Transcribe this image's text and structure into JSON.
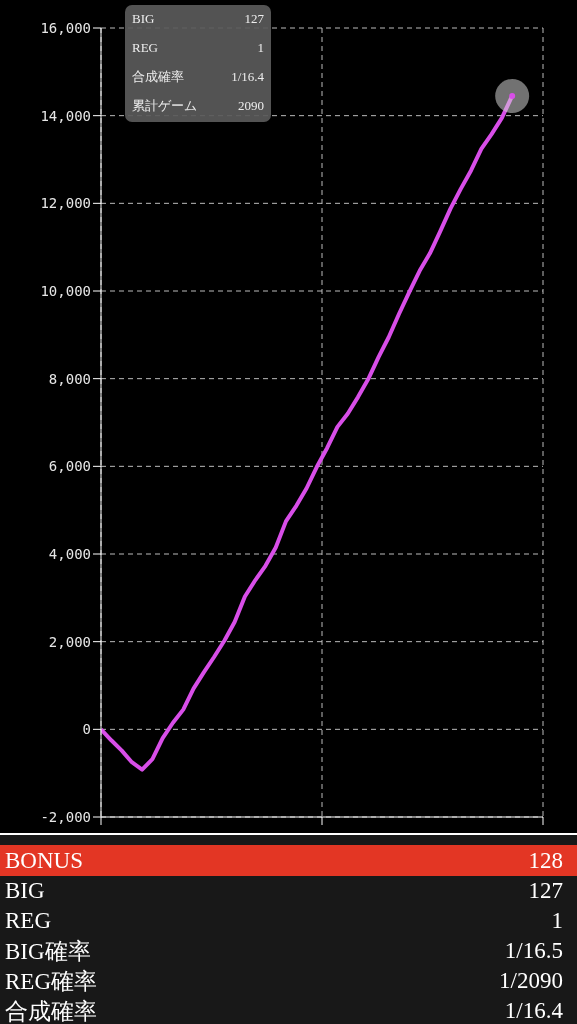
{
  "chart_data": {
    "type": "line",
    "categories": [
      null,
      null,
      null,
      null,
      null,
      null,
      null,
      null,
      null,
      null,
      null,
      null,
      null,
      null,
      null,
      null,
      null,
      null,
      null,
      null,
      null,
      null,
      null,
      null,
      null,
      null,
      null,
      null,
      null,
      null,
      null,
      null,
      null,
      null,
      null,
      null,
      null,
      null,
      null,
      null,
      null,
      null,
      null,
      null
    ],
    "series": [
      {
        "color": "#d84ee8",
        "values": [
          0,
          -250,
          -480,
          -750,
          -920,
          -680,
          -200,
          150,
          450,
          930,
          1300,
          1650,
          2020,
          2450,
          3030,
          3400,
          3730,
          4150,
          4750,
          5100,
          5500,
          5990,
          6420,
          6900,
          7200,
          7580,
          7990,
          8490,
          8950,
          9480,
          9980,
          10460,
          10860,
          11360,
          11880,
          12330,
          12750,
          13240,
          13580,
          13950,
          14450,
          null,
          null,
          null
        ]
      }
    ],
    "ylim": [
      -2000,
      16000
    ],
    "yticks": [
      {
        "value": -2000,
        "label": "-2,000"
      },
      {
        "value": 0,
        "label": "0"
      },
      {
        "value": 2000,
        "label": "2,000"
      },
      {
        "value": 4000,
        "label": "4,000"
      },
      {
        "value": 6000,
        "label": "6,000"
      },
      {
        "value": 8000,
        "label": "8,000"
      },
      {
        "value": 10000,
        "label": "10,000"
      },
      {
        "value": 12000,
        "label": "12,000"
      },
      {
        "value": 14000,
        "label": "14,000"
      },
      {
        "value": 16000,
        "label": "16,000"
      }
    ],
    "grid": true,
    "tick_labels": "y",
    "annotations": [
      "BIG",
      "127",
      "REG",
      "1",
      "合成確率",
      "1/16.4",
      "累計ゲーム",
      "2090",
      "BONUS",
      "128",
      "BIG",
      "127",
      "REG",
      "1",
      "BIG確率",
      "1/16.5",
      "REG確率",
      "1/2090",
      "合成確率",
      "1/16.4"
    ]
  }
}
